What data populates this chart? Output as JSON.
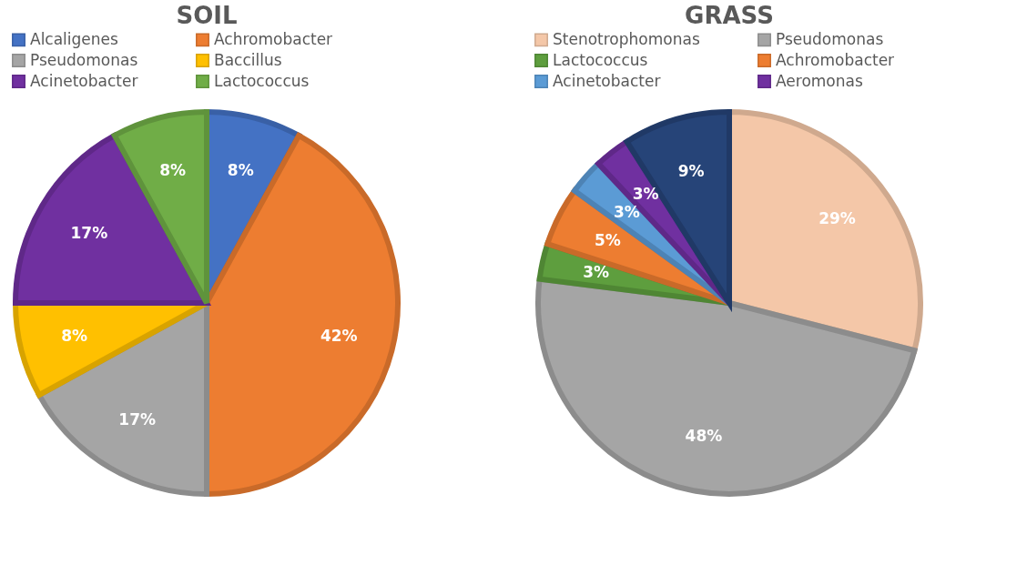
{
  "chart_data": [
    {
      "type": "pie",
      "title": "SOIL",
      "legend": "top",
      "categories": [
        "Alcaligenes",
        "Achromobacter",
        "Pseudomonas",
        "Baccillus",
        "Acinetobacter",
        "Lactococcus"
      ],
      "values": [
        8,
        42,
        17,
        8,
        17,
        8
      ],
      "colors": [
        "#4472c4",
        "#ed7d31",
        "#a5a5a5",
        "#ffc000",
        "#7030a0",
        "#70ad47"
      ],
      "value_labels": [
        "8%",
        "42%",
        "17%",
        "8%",
        "17%",
        "8%"
      ]
    },
    {
      "type": "pie",
      "title": "GRASS",
      "legend": "top",
      "categories": [
        "Stenotrophomonas",
        "Pseudomonas",
        "Lactococcus",
        "Achromobacter",
        "Acinetobacter",
        "Aeromonas",
        null
      ],
      "values": [
        29,
        48,
        3,
        5,
        3,
        3,
        9
      ],
      "colors": [
        "#f4c7a8",
        "#a5a5a5",
        "#5e9e3e",
        "#ed7d31",
        "#5b9bd5",
        "#7030a0",
        "#264478"
      ],
      "value_labels": [
        "29%",
        "48%",
        "3%",
        "5%",
        "3%",
        "3%",
        "9%"
      ]
    }
  ]
}
